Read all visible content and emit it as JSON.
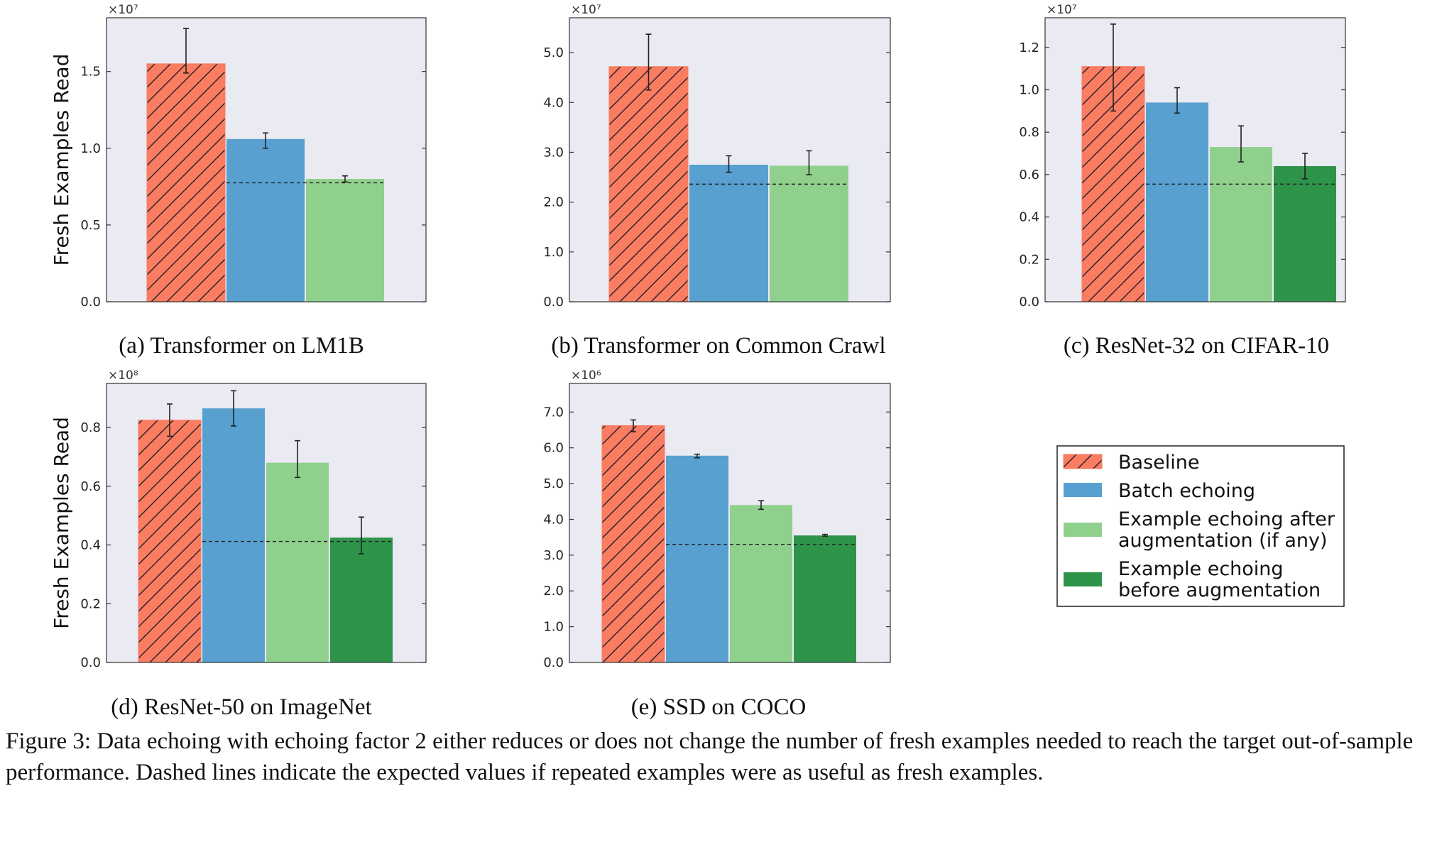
{
  "figure_caption": "Figure 3: Data echoing with echoing factor 2 either reduces or does not change the number of fresh examples needed to reach the target out-of-sample performance. Dashed lines indicate the expected values if repeated examples were as useful as fresh examples.",
  "legend": {
    "placement": "right",
    "items": [
      {
        "lines": [
          "Baseline"
        ],
        "color": "#fa7c62",
        "hatched": true
      },
      {
        "lines": [
          "Batch echoing"
        ],
        "color": "#57a0cf",
        "hatched": false
      },
      {
        "lines": [
          "Example echoing after",
          "augmentation (if any)"
        ],
        "color": "#8fd08c",
        "hatched": false
      },
      {
        "lines": [
          "Example echoing",
          "before augmentation"
        ],
        "color": "#2e944a",
        "hatched": false
      }
    ]
  },
  "colors": {
    "panel_bg": "#eaeaf2",
    "baseline": "#fa7c62",
    "batch": "#57a0cf",
    "example_after": "#8fd08c",
    "example_before": "#2e944a"
  },
  "chart_data": [
    {
      "type": "bar",
      "subtitle": "(a) Transformer on LM1B",
      "ylabel": "Fresh Examples Read",
      "multiplier_label": "×10⁷",
      "ylim": [
        0,
        1.85
      ],
      "yticks": [
        0.0,
        0.5,
        1.0,
        1.5
      ],
      "tick_labels": [
        "0.0",
        "0.5",
        "1.0",
        "1.5"
      ],
      "series": [
        {
          "name": "Baseline",
          "value": 1.55,
          "err_low": 1.49,
          "err_high": 1.78
        },
        {
          "name": "Batch echoing",
          "value": 1.06,
          "err_low": 1.0,
          "err_high": 1.1
        },
        {
          "name": "Example echoing after augmentation (if any)",
          "value": 0.8,
          "err_low": 0.78,
          "err_high": 0.82
        }
      ],
      "dashed_line": 0.775
    },
    {
      "type": "bar",
      "subtitle": "(b) Transformer on Common Crawl",
      "ylabel": "",
      "multiplier_label": "×10⁷",
      "ylim": [
        0,
        5.7
      ],
      "yticks": [
        0.0,
        1.0,
        2.0,
        3.0,
        4.0,
        5.0
      ],
      "tick_labels": [
        "0.0",
        "1.0",
        "2.0",
        "3.0",
        "4.0",
        "5.0"
      ],
      "series": [
        {
          "name": "Baseline",
          "value": 4.72,
          "err_low": 4.25,
          "err_high": 5.37
        },
        {
          "name": "Batch echoing",
          "value": 2.75,
          "err_low": 2.6,
          "err_high": 2.93
        },
        {
          "name": "Example echoing after augmentation (if any)",
          "value": 2.73,
          "err_low": 2.55,
          "err_high": 3.03
        }
      ],
      "dashed_line": 2.36
    },
    {
      "type": "bar",
      "subtitle": "(c) ResNet-32 on CIFAR-10",
      "ylabel": "",
      "multiplier_label": "×10⁷",
      "ylim": [
        0,
        1.34
      ],
      "yticks": [
        0.0,
        0.2,
        0.4,
        0.6,
        0.8,
        1.0,
        1.2
      ],
      "tick_labels": [
        "0.0",
        "0.2",
        "0.4",
        "0.6",
        "0.8",
        "1.0",
        "1.2"
      ],
      "series": [
        {
          "name": "Baseline",
          "value": 1.11,
          "err_low": 0.9,
          "err_high": 1.31
        },
        {
          "name": "Batch echoing",
          "value": 0.94,
          "err_low": 0.89,
          "err_high": 1.01
        },
        {
          "name": "Example echoing after augmentation (if any)",
          "value": 0.73,
          "err_low": 0.66,
          "err_high": 0.83
        },
        {
          "name": "Example echoing before augmentation",
          "value": 0.64,
          "err_low": 0.58,
          "err_high": 0.7
        }
      ],
      "dashed_line": 0.555
    },
    {
      "type": "bar",
      "subtitle": "(d) ResNet-50 on ImageNet",
      "ylabel": "Fresh Examples Read",
      "multiplier_label": "×10⁸",
      "ylim": [
        0,
        0.95
      ],
      "yticks": [
        0.0,
        0.2,
        0.4,
        0.6,
        0.8
      ],
      "tick_labels": [
        "0.0",
        "0.2",
        "0.4",
        "0.6",
        "0.8"
      ],
      "series": [
        {
          "name": "Baseline",
          "value": 0.825,
          "err_low": 0.77,
          "err_high": 0.88
        },
        {
          "name": "Batch echoing",
          "value": 0.865,
          "err_low": 0.805,
          "err_high": 0.925
        },
        {
          "name": "Example echoing after augmentation (if any)",
          "value": 0.68,
          "err_low": 0.63,
          "err_high": 0.755
        },
        {
          "name": "Example echoing before augmentation",
          "value": 0.425,
          "err_low": 0.37,
          "err_high": 0.495
        }
      ],
      "dashed_line": 0.412
    },
    {
      "type": "bar",
      "subtitle": "(e) SSD on COCO",
      "ylabel": "",
      "multiplier_label": "×10⁶",
      "ylim": [
        0,
        7.8
      ],
      "yticks": [
        0.0,
        1.0,
        2.0,
        3.0,
        4.0,
        5.0,
        6.0,
        7.0
      ],
      "tick_labels": [
        "0.0",
        "1.0",
        "2.0",
        "3.0",
        "4.0",
        "5.0",
        "6.0",
        "7.0"
      ],
      "series": [
        {
          "name": "Baseline",
          "value": 6.62,
          "err_low": 6.45,
          "err_high": 6.78
        },
        {
          "name": "Batch echoing",
          "value": 5.78,
          "err_low": 5.72,
          "err_high": 5.82
        },
        {
          "name": "Example echoing after augmentation (if any)",
          "value": 4.4,
          "err_low": 4.28,
          "err_high": 4.52
        },
        {
          "name": "Example echoing before augmentation",
          "value": 3.55,
          "err_low": 3.53,
          "err_high": 3.58
        }
      ],
      "dashed_line": 3.3
    }
  ]
}
